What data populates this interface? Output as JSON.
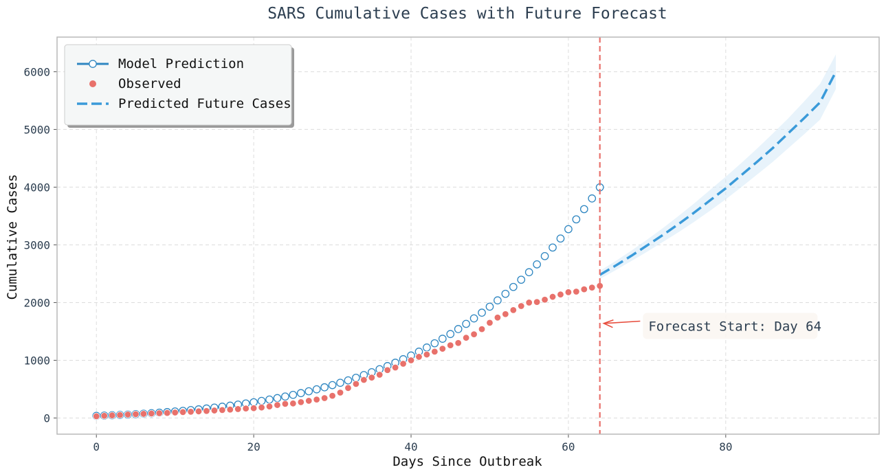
{
  "chart_data": {
    "type": "line",
    "title": "SARS Cumulative Cases with Future Forecast",
    "xlabel": "Days Since Outbreak",
    "ylabel": "Cumulative Cases",
    "xlim": [
      -5,
      99.5
    ],
    "ylim": [
      -280,
      6600
    ],
    "xticks": [
      0,
      20,
      40,
      60,
      80
    ],
    "yticks": [
      0,
      1000,
      2000,
      3000,
      4000,
      5000,
      6000
    ],
    "grid": true,
    "legend": {
      "placement": "top-left",
      "entries": [
        {
          "label": "Model Prediction",
          "marker": "line-hollow-circle",
          "color": "#2e86c1"
        },
        {
          "label": "Observed",
          "marker": "filled-circle",
          "color": "#e8716b"
        },
        {
          "label": "Predicted Future Cases",
          "marker": "dashed-line",
          "color": "#3a9ad9"
        }
      ]
    },
    "series": [
      {
        "name": "Model Prediction",
        "color": "#2e86c1",
        "style": "hollow-circle-markers",
        "x": [
          0,
          1,
          2,
          3,
          4,
          5,
          6,
          7,
          8,
          9,
          10,
          11,
          12,
          13,
          14,
          15,
          16,
          17,
          18,
          19,
          20,
          21,
          22,
          23,
          24,
          25,
          26,
          27,
          28,
          29,
          30,
          31,
          32,
          33,
          34,
          35,
          36,
          37,
          38,
          39,
          40,
          41,
          42,
          43,
          44,
          45,
          46,
          47,
          48,
          49,
          50,
          51,
          52,
          53,
          54,
          55,
          56,
          57,
          58,
          59,
          60,
          61,
          62,
          63,
          64
        ],
        "y": [
          37,
          42,
          47,
          53,
          60,
          67,
          75,
          83,
          92,
          102,
          113,
          124,
          137,
          150,
          165,
          180,
          196,
          214,
          232,
          252,
          273,
          296,
          320,
          345,
          372,
          401,
          431,
          463,
          497,
          532,
          570,
          610,
          652,
          697,
          744,
          793,
          845,
          900,
          958,
          1019,
          1083,
          1150,
          1221,
          1295,
          1373,
          1455,
          1541,
          1631,
          1726,
          1825,
          1929,
          2038,
          2152,
          2271,
          2396,
          2526,
          2662,
          2805,
          2954,
          3110,
          3272,
          3442,
          3619,
          3804,
          3997
        ]
      },
      {
        "name": "Observed",
        "color": "#e8716b",
        "style": "filled-circle-markers",
        "x": [
          0,
          1,
          2,
          3,
          4,
          5,
          6,
          7,
          8,
          9,
          10,
          11,
          12,
          13,
          14,
          15,
          16,
          17,
          18,
          19,
          20,
          21,
          22,
          23,
          24,
          25,
          26,
          27,
          28,
          29,
          30,
          31,
          32,
          33,
          34,
          35,
          36,
          37,
          38,
          39,
          40,
          41,
          42,
          43,
          44,
          45,
          46,
          47,
          48,
          49,
          50,
          51,
          52,
          53,
          54,
          55,
          56,
          57,
          58,
          59,
          60,
          61,
          62,
          63,
          64
        ],
        "y": [
          30,
          38,
          45,
          52,
          60,
          66,
          72,
          78,
          83,
          88,
          95,
          102,
          108,
          115,
          122,
          130,
          138,
          146,
          155,
          165,
          170,
          182,
          200,
          225,
          245,
          252,
          275,
          298,
          320,
          345,
          385,
          440,
          520,
          590,
          660,
          700,
          750,
          830,
          875,
          940,
          1000,
          1060,
          1100,
          1150,
          1200,
          1260,
          1300,
          1390,
          1450,
          1540,
          1650,
          1740,
          1800,
          1870,
          1940,
          2000,
          2010,
          2050,
          2100,
          2140,
          2180,
          2190,
          2230,
          2260,
          2290
        ]
      },
      {
        "name": "Predicted Future Cases",
        "color": "#3a9ad9",
        "style": "dashed-line-with-band",
        "x": [
          64,
          66,
          68,
          70,
          72,
          74,
          76,
          78,
          80,
          82,
          84,
          86,
          88,
          90,
          92,
          94
        ],
        "y": [
          2480,
          2640,
          2810,
          2990,
          3170,
          3360,
          3560,
          3770,
          3980,
          4210,
          4440,
          4680,
          4940,
          5200,
          5470,
          6000
        ],
        "band_lower": [
          2410,
          2560,
          2720,
          2880,
          3050,
          3220,
          3400,
          3590,
          3790,
          4000,
          4220,
          4440,
          4680,
          4920,
          5170,
          5700
        ],
        "band_upper": [
          2550,
          2720,
          2900,
          3090,
          3290,
          3500,
          3720,
          3950,
          4180,
          4420,
          4670,
          4930,
          5200,
          5490,
          5790,
          6300
        ]
      }
    ],
    "forecast_line": {
      "x": 64,
      "color": "#e8716b",
      "style": "dashed"
    },
    "annotation": {
      "text": "Forecast Start: Day 64",
      "arrow_to": {
        "x": 64.5,
        "y": 1640
      },
      "text_at": {
        "x": 70,
        "y": 1440
      },
      "arrow_color": "#e74c3c"
    }
  }
}
